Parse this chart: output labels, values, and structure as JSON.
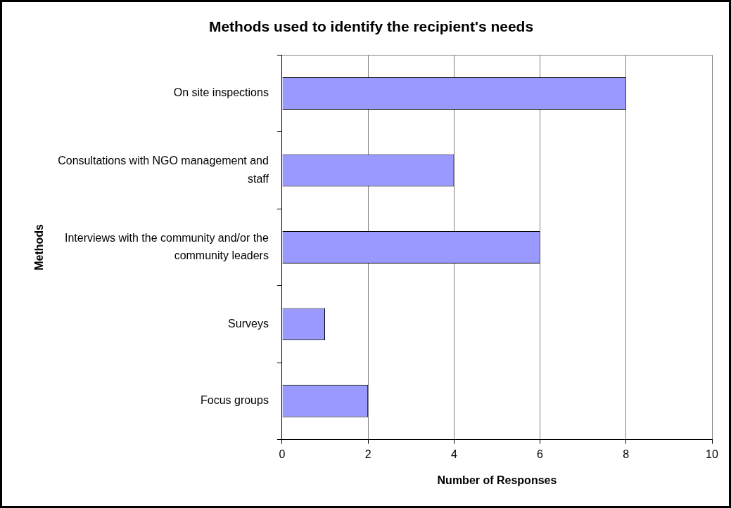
{
  "chart_data": {
    "type": "bar",
    "orientation": "horizontal",
    "title": "Methods used to identify the recipient's needs",
    "xlabel": "Number of Responses",
    "ylabel": "Methods",
    "categories": [
      "On site inspections",
      "Consultations with NGO management and staff",
      "Interviews with the community and/or the community leaders",
      "Surveys",
      "Focus groups"
    ],
    "values": [
      8,
      4,
      6,
      1,
      2
    ],
    "color": "#9999ff",
    "xlim": [
      0,
      10
    ],
    "xticks": [
      0,
      2,
      4,
      6,
      8,
      10
    ],
    "grid": "x"
  }
}
